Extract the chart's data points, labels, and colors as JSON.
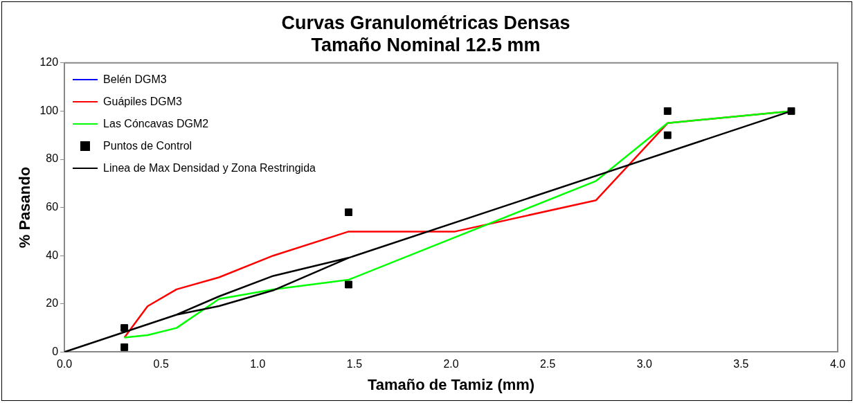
{
  "chart_data": {
    "type": "line",
    "title": "Curvas Granulométricas Densas\nTamaño Nominal 12.5 mm",
    "xlabel": "Tamaño de Tamiz (mm)",
    "ylabel": "% Pasando",
    "xlim": [
      0,
      4
    ],
    "xticks": [
      {
        "value": 0,
        "label": "0.0"
      },
      {
        "value": 0.5,
        "label": "0.5"
      },
      {
        "value": 1,
        "label": "1.0"
      },
      {
        "value": 1.5,
        "label": "1.5"
      },
      {
        "value": 2,
        "label": "2.0"
      },
      {
        "value": 2.5,
        "label": "2.5"
      },
      {
        "value": 3,
        "label": "3.0"
      },
      {
        "value": 3.5,
        "label": "3.5"
      },
      {
        "value": 4,
        "label": "4.0"
      }
    ],
    "ylim": [
      0,
      120
    ],
    "yticks": [
      0,
      20,
      40,
      60,
      80,
      100,
      120
    ],
    "grid": false,
    "legend": "top left",
    "marker": "none",
    "series": [
      {
        "name": "Belén DGM3",
        "color": "#0000ff"
      },
      {
        "name": "Guápiles DGM3",
        "color": "#ff0000",
        "x": [
          0.31,
          0.43,
          0.58,
          0.8,
          1.08,
          1.47,
          2.02,
          2.75,
          3.12,
          3.76
        ],
        "values": [
          6,
          19,
          26,
          31,
          40,
          50,
          50,
          63,
          95,
          100
        ]
      },
      {
        "name": "Las Cóncavas DGM2",
        "color": "#00ff00",
        "x": [
          0.31,
          0.43,
          0.58,
          0.8,
          1.08,
          1.47,
          2.75,
          3.12,
          3.76
        ],
        "values": [
          6,
          7,
          10,
          22,
          26,
          30,
          71,
          95,
          100
        ]
      },
      {
        "name": "Puntos de Control",
        "type": "scatter",
        "marker": "square",
        "color": "#000000",
        "x": [
          0.31,
          0.31,
          1.47,
          1.47,
          3.12,
          3.12,
          3.76
        ],
        "values": [
          2,
          10,
          28,
          58,
          90,
          100,
          100
        ]
      },
      {
        "name": "Linea de Max Densidad y Zona Restringida",
        "color": "#000000",
        "x": [
          0,
          0.58,
          0.8,
          1.08,
          1.47,
          3.76,
          null,
          0.58,
          0.8,
          1.08,
          1.47
        ],
        "values": [
          0,
          15.5,
          23.1,
          31.6,
          39.1,
          100,
          null,
          15.5,
          19.1,
          25.6,
          39.1
        ]
      }
    ]
  }
}
